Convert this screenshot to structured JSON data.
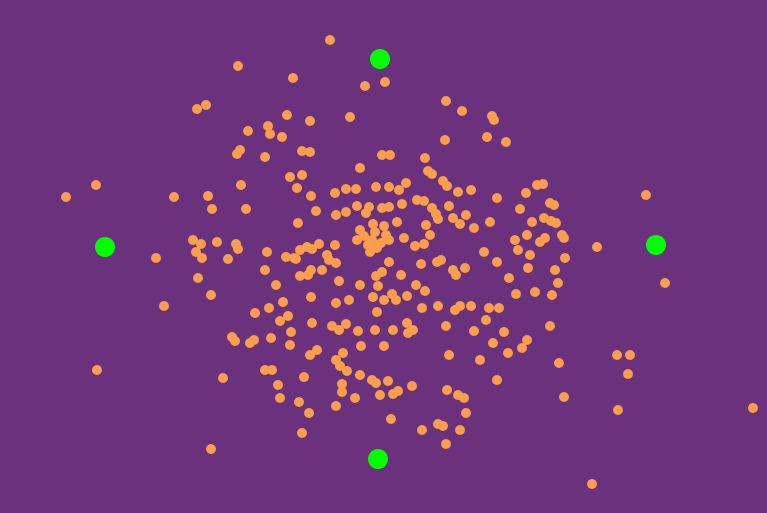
{
  "scene": {
    "background_color": "#6b317d",
    "particle_color": "#f99e4c",
    "target_color": "#00ff00",
    "particle_icon": "orange-circle",
    "target_icon": "green-circle"
  }
}
